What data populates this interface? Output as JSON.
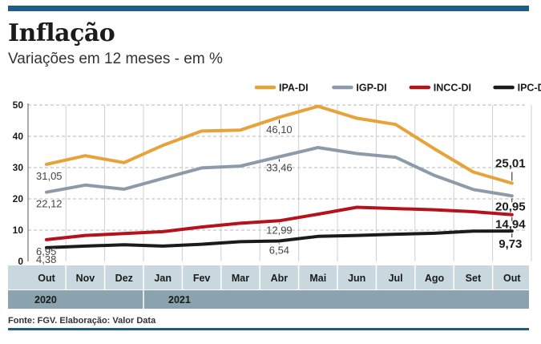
{
  "header": {
    "title": "Inflação",
    "subtitle": "Variações em 12 meses - em %"
  },
  "footer": {
    "source": "Fonte: FGV. Elaboração: Valor Data"
  },
  "chart_data": {
    "type": "line",
    "title": "Inflação",
    "subtitle": "Variações em 12 meses - em %",
    "categories": [
      "Out",
      "Nov",
      "Dez",
      "Jan",
      "Fev",
      "Mar",
      "Abr",
      "Mai",
      "Jun",
      "Jul",
      "Ago",
      "Set",
      "Out"
    ],
    "years": [
      {
        "label": "2020",
        "start_index": 0
      },
      {
        "label": "2021",
        "start_index": 3
      }
    ],
    "ylim": [
      0,
      50
    ],
    "yticks": [
      0,
      10,
      20,
      30,
      40,
      50
    ],
    "grid": true,
    "legend_position": "top-right",
    "xlabel": "",
    "ylabel": "",
    "series": [
      {
        "name": "IPA-DI",
        "color": "#e8a23a",
        "values": [
          31.05,
          33.8,
          31.6,
          37.1,
          41.7,
          42.0,
          46.1,
          49.6,
          45.8,
          43.8,
          36.0,
          28.6,
          25.01
        ]
      },
      {
        "name": "IGP-DI",
        "color": "#8c9aaa",
        "values": [
          22.12,
          24.4,
          23.1,
          26.5,
          29.9,
          30.5,
          33.46,
          36.4,
          34.5,
          33.3,
          27.5,
          23.0,
          20.95
        ]
      },
      {
        "name": "INCC-DI",
        "color": "#b5121b",
        "values": [
          6.95,
          8.3,
          8.9,
          9.5,
          11.0,
          12.2,
          12.99,
          15.1,
          17.3,
          16.9,
          16.5,
          15.9,
          14.94
        ]
      },
      {
        "name": "IPC-DI",
        "color": "#1b1b1b",
        "values": [
          4.38,
          4.9,
          5.3,
          4.9,
          5.5,
          6.3,
          6.54,
          8.0,
          8.3,
          8.7,
          9.0,
          9.7,
          9.73
        ]
      }
    ],
    "annotations": [
      {
        "series": "IPA-DI",
        "index": 0,
        "text": "31,05"
      },
      {
        "series": "IGP-DI",
        "index": 0,
        "text": "22,12"
      },
      {
        "series": "INCC-DI",
        "index": 0,
        "text": "6,95"
      },
      {
        "series": "IPC-DI",
        "index": 0,
        "text": "4,38"
      },
      {
        "series": "IPA-DI",
        "index": 6,
        "text": "46,10"
      },
      {
        "series": "IGP-DI",
        "index": 6,
        "text": "33,46"
      },
      {
        "series": "INCC-DI",
        "index": 6,
        "text": "12,99"
      },
      {
        "series": "IPC-DI",
        "index": 6,
        "text": "6,54"
      },
      {
        "series": "IPA-DI",
        "index": 12,
        "text": "25,01"
      },
      {
        "series": "IGP-DI",
        "index": 12,
        "text": "20,95"
      },
      {
        "series": "INCC-DI",
        "index": 12,
        "text": "14,94"
      },
      {
        "series": "IPC-DI",
        "index": 12,
        "text": "9,73"
      }
    ]
  }
}
